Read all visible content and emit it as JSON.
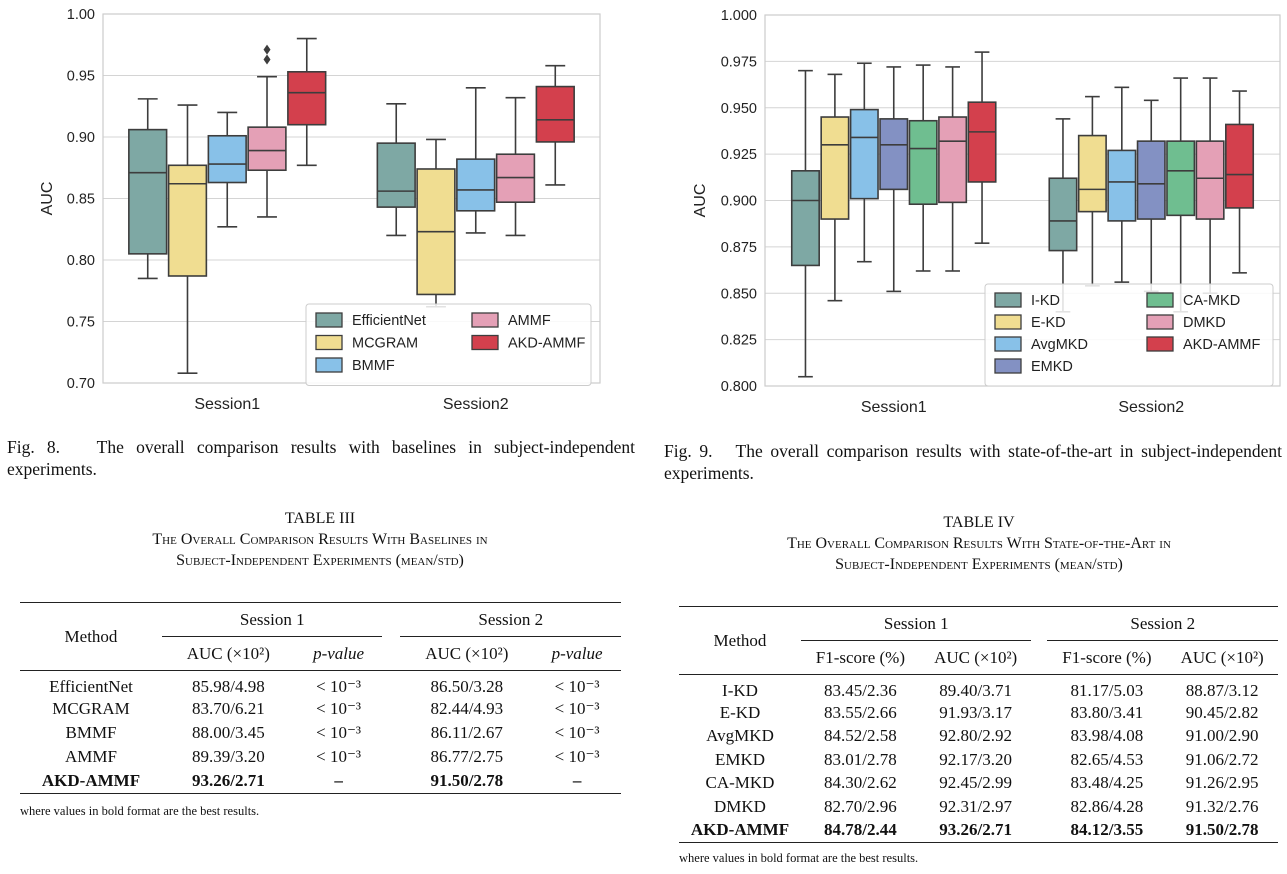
{
  "fig8": {
    "caption_label": "Fig. 8.",
    "caption_text": "The overall comparison results with baselines in subject-independent experiments.",
    "chart_data": {
      "type": "box",
      "ylabel": "AUC",
      "ylim": [
        0.7,
        1.0
      ],
      "yticks": [
        "0.70",
        "0.75",
        "0.80",
        "0.85",
        "0.90",
        "0.95",
        "1.00"
      ],
      "categories": [
        "Session1",
        "Session2"
      ],
      "grid": true,
      "legend_placement": "bottom-right",
      "series": [
        {
          "name": "EfficientNet",
          "color": "#7ea8a4",
          "boxes": [
            {
              "whislo": 0.785,
              "q1": 0.805,
              "med": 0.871,
              "q3": 0.906,
              "whishi": 0.931
            },
            {
              "whislo": 0.82,
              "q1": 0.843,
              "med": 0.856,
              "q3": 0.895,
              "whishi": 0.927
            }
          ]
        },
        {
          "name": "MCGRAM",
          "color": "#f0dd91",
          "boxes": [
            {
              "whislo": 0.708,
              "q1": 0.787,
              "med": 0.862,
              "q3": 0.877,
              "whishi": 0.926
            },
            {
              "whislo": 0.762,
              "q1": 0.772,
              "med": 0.823,
              "q3": 0.874,
              "whishi": 0.898
            }
          ]
        },
        {
          "name": "BMMF",
          "color": "#88c1e8",
          "boxes": [
            {
              "whislo": 0.827,
              "q1": 0.863,
              "med": 0.878,
              "q3": 0.901,
              "whishi": 0.92
            },
            {
              "whislo": 0.822,
              "q1": 0.84,
              "med": 0.857,
              "q3": 0.882,
              "whishi": 0.94
            }
          ]
        },
        {
          "name": "AMMF",
          "color": "#e4a0b6",
          "boxes": [
            {
              "whislo": 0.835,
              "q1": 0.873,
              "med": 0.889,
              "q3": 0.908,
              "whishi": 0.949,
              "fliers": [
                0.963,
                0.971
              ]
            },
            {
              "whislo": 0.82,
              "q1": 0.847,
              "med": 0.867,
              "q3": 0.886,
              "whishi": 0.932
            }
          ]
        },
        {
          "name": "AKD-AMMF",
          "color": "#d3404d",
          "boxes": [
            {
              "whislo": 0.877,
              "q1": 0.91,
              "med": 0.936,
              "q3": 0.953,
              "whishi": 0.98
            },
            {
              "whislo": 0.861,
              "q1": 0.896,
              "med": 0.914,
              "q3": 0.941,
              "whishi": 0.958
            }
          ]
        }
      ]
    }
  },
  "fig9": {
    "caption_label": "Fig. 9.",
    "caption_text": "The overall comparison results with state-of-the-art in subject-independent experiments.",
    "chart_data": {
      "type": "box",
      "ylabel": "AUC",
      "ylim": [
        0.8,
        1.0
      ],
      "yticks": [
        "0.800",
        "0.825",
        "0.850",
        "0.875",
        "0.900",
        "0.925",
        "0.950",
        "0.975",
        "1.000"
      ],
      "categories": [
        "Session1",
        "Session2"
      ],
      "grid": true,
      "legend_placement": "bottom-right",
      "series": [
        {
          "name": "I-KD",
          "color": "#7ea8a4",
          "boxes": [
            {
              "whislo": 0.805,
              "q1": 0.865,
              "med": 0.9,
              "q3": 0.916,
              "whishi": 0.97
            },
            {
              "whislo": 0.84,
              "q1": 0.873,
              "med": 0.889,
              "q3": 0.912,
              "whishi": 0.944
            }
          ]
        },
        {
          "name": "E-KD",
          "color": "#f0dd91",
          "boxes": [
            {
              "whislo": 0.846,
              "q1": 0.89,
              "med": 0.93,
              "q3": 0.945,
              "whishi": 0.968
            },
            {
              "whislo": 0.854,
              "q1": 0.894,
              "med": 0.906,
              "q3": 0.935,
              "whishi": 0.956
            }
          ]
        },
        {
          "name": "AvgMKD",
          "color": "#88c1e8",
          "boxes": [
            {
              "whislo": 0.867,
              "q1": 0.901,
              "med": 0.934,
              "q3": 0.949,
              "whishi": 0.974
            },
            {
              "whislo": 0.856,
              "q1": 0.889,
              "med": 0.91,
              "q3": 0.927,
              "whishi": 0.961
            }
          ]
        },
        {
          "name": "EMKD",
          "color": "#8391c3",
          "boxes": [
            {
              "whislo": 0.851,
              "q1": 0.906,
              "med": 0.93,
              "q3": 0.944,
              "whishi": 0.972
            },
            {
              "whislo": 0.851,
              "q1": 0.89,
              "med": 0.909,
              "q3": 0.932,
              "whishi": 0.954
            }
          ]
        },
        {
          "name": "CA-MKD",
          "color": "#6fbe90",
          "boxes": [
            {
              "whislo": 0.862,
              "q1": 0.898,
              "med": 0.928,
              "q3": 0.943,
              "whishi": 0.973
            },
            {
              "whislo": 0.84,
              "q1": 0.892,
              "med": 0.916,
              "q3": 0.932,
              "whishi": 0.966
            }
          ]
        },
        {
          "name": "DMKD",
          "color": "#e4a0b6",
          "boxes": [
            {
              "whislo": 0.862,
              "q1": 0.899,
              "med": 0.932,
              "q3": 0.945,
              "whishi": 0.972
            },
            {
              "whislo": 0.85,
              "q1": 0.89,
              "med": 0.912,
              "q3": 0.932,
              "whishi": 0.966
            }
          ]
        },
        {
          "name": "AKD-AMMF",
          "color": "#d3404d",
          "boxes": [
            {
              "whislo": 0.877,
              "q1": 0.91,
              "med": 0.937,
              "q3": 0.953,
              "whishi": 0.98
            },
            {
              "whislo": 0.861,
              "q1": 0.896,
              "med": 0.914,
              "q3": 0.941,
              "whishi": 0.959
            }
          ]
        }
      ]
    }
  },
  "table3": {
    "number": "TABLE III",
    "title_line1": "The Overall Comparison Results With Baselines in",
    "title_line2": "Subject-Independent Experiments (mean/std)",
    "method_header": "Method",
    "session1": "Session 1",
    "session2": "Session 2",
    "auc_header": "AUC (×10²)",
    "p_header": "p-value",
    "rows": [
      {
        "method": "EfficientNet",
        "s1_auc": "85.98/4.98",
        "s1_p": "< 10⁻³",
        "s2_auc": "86.50/3.28",
        "s2_p": "< 10⁻³"
      },
      {
        "method": "MCGRAM",
        "s1_auc": "83.70/6.21",
        "s1_p": "< 10⁻³",
        "s2_auc": "82.44/4.93",
        "s2_p": "< 10⁻³"
      },
      {
        "method": "BMMF",
        "s1_auc": "88.00/3.45",
        "s1_p": "< 10⁻³",
        "s2_auc": "86.11/2.67",
        "s2_p": "< 10⁻³"
      },
      {
        "method": "AMMF",
        "s1_auc": "89.39/3.20",
        "s1_p": "< 10⁻³",
        "s2_auc": "86.77/2.75",
        "s2_p": "< 10⁻³"
      },
      {
        "method": "AKD-AMMF",
        "s1_auc": "93.26/2.71",
        "s1_p": "–",
        "s2_auc": "91.50/2.78",
        "s2_p": "–"
      }
    ],
    "note": "where values in bold format are the best results."
  },
  "table4": {
    "number": "TABLE IV",
    "title_line1": "The Overall Comparison Results With State-of-the-Art in",
    "title_line2": "Subject-Independent Experiments (mean/std)",
    "method_header": "Method",
    "session1": "Session 1",
    "session2": "Session 2",
    "f1_header": "F1-score (%)",
    "auc_header": "AUC (×10²)",
    "rows": [
      {
        "method": "I-KD",
        "s1_f1": "83.45/2.36",
        "s1_auc": "89.40/3.71",
        "s2_f1": "81.17/5.03",
        "s2_auc": "88.87/3.12"
      },
      {
        "method": "E-KD",
        "s1_f1": "83.55/2.66",
        "s1_auc": "91.93/3.17",
        "s2_f1": "83.80/3.41",
        "s2_auc": "90.45/2.82"
      },
      {
        "method": "AvgMKD",
        "s1_f1": "84.52/2.58",
        "s1_auc": "92.80/2.92",
        "s2_f1": "83.98/4.08",
        "s2_auc": "91.00/2.90"
      },
      {
        "method": "EMKD",
        "s1_f1": "83.01/2.78",
        "s1_auc": "92.17/3.20",
        "s2_f1": "82.65/4.53",
        "s2_auc": "91.06/2.72"
      },
      {
        "method": "CA-MKD",
        "s1_f1": "84.30/2.62",
        "s1_auc": "92.45/2.99",
        "s2_f1": "83.48/4.25",
        "s2_auc": "91.26/2.95"
      },
      {
        "method": "DMKD",
        "s1_f1": "82.70/2.96",
        "s1_auc": "92.31/2.97",
        "s2_f1": "82.86/4.28",
        "s2_auc": "91.32/2.76"
      },
      {
        "method": "AKD-AMMF",
        "s1_f1": "84.78/2.44",
        "s1_auc": "93.26/2.71",
        "s2_f1": "84.12/3.55",
        "s2_auc": "91.50/2.78"
      }
    ],
    "note": "where values in bold format are the best results."
  }
}
